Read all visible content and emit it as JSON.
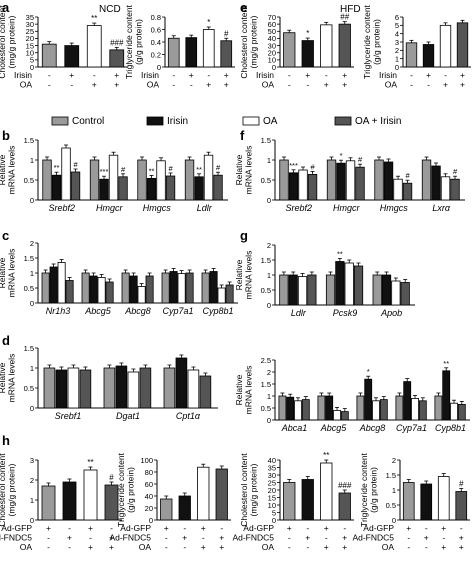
{
  "colors": {
    "gray": "#9a9a9a",
    "black": "#111111",
    "white": "#ffffff",
    "dark": "#555555"
  },
  "legend": [
    {
      "label": "Control",
      "color": "gray"
    },
    {
      "label": "Irisin",
      "color": "black"
    },
    {
      "label": "OA",
      "color": "white"
    },
    {
      "label": "OA + Irisin",
      "color": "dark"
    }
  ],
  "panel_letters": [
    "a",
    "b",
    "c",
    "d",
    "e",
    "f",
    "g",
    "h"
  ],
  "headings": {
    "ncd": "NCD",
    "hfd": "HFD"
  },
  "chart_data": [
    {
      "id": "a1",
      "type": "bar",
      "ylabel": "Cholesterol content\n(mg/g protein)",
      "ylim": [
        0,
        35
      ],
      "yticks": [
        0,
        5,
        10,
        15,
        20,
        25,
        30,
        35
      ],
      "values": [
        16,
        15,
        29,
        12
      ],
      "colors": [
        "gray",
        "black",
        "white",
        "dark"
      ],
      "sig": [
        "",
        "",
        "**",
        "###"
      ],
      "conditions": [
        {
          "name": "Irisin",
          "marks": [
            "-",
            "+",
            "-",
            "+"
          ]
        },
        {
          "name": "OA",
          "marks": [
            "-",
            "-",
            "+",
            "+"
          ]
        }
      ]
    },
    {
      "id": "a2",
      "type": "bar",
      "ylabel": "Triglyceride content\n(g/g protein)",
      "ylim": [
        0,
        0.8
      ],
      "yticks": [
        0.0,
        0.2,
        0.4,
        0.6,
        0.8
      ],
      "values": [
        0.46,
        0.47,
        0.6,
        0.42
      ],
      "colors": [
        "gray",
        "black",
        "white",
        "dark"
      ],
      "sig": [
        "",
        "",
        "*",
        "#"
      ],
      "conditions": [
        {
          "name": "Irisin",
          "marks": [
            "-",
            "+",
            "-",
            "+"
          ]
        },
        {
          "name": "OA",
          "marks": [
            "-",
            "-",
            "+",
            "+"
          ]
        }
      ]
    },
    {
      "id": "e1",
      "type": "bar",
      "ylabel": "Cholesterol content\n(mg/g protein)",
      "ylim": [
        0,
        70
      ],
      "yticks": [
        0,
        10,
        20,
        30,
        40,
        50,
        60,
        70
      ],
      "values": [
        48,
        37,
        59,
        60
      ],
      "colors": [
        "gray",
        "black",
        "white",
        "dark"
      ],
      "sig": [
        "",
        "*",
        "",
        "##"
      ],
      "conditions": [
        {
          "name": "Irisin",
          "marks": [
            "-",
            "+",
            "-",
            "+"
          ]
        },
        {
          "name": "OA",
          "marks": [
            "-",
            "-",
            "+",
            "+"
          ]
        }
      ]
    },
    {
      "id": "e2",
      "type": "bar",
      "ylabel": "Triglyceride content\n(g/g protein)",
      "ylim": [
        0,
        6
      ],
      "yticks": [
        0,
        1,
        2,
        3,
        4,
        5,
        6
      ],
      "values": [
        2.9,
        2.7,
        5.0,
        5.3
      ],
      "colors": [
        "gray",
        "black",
        "white",
        "dark"
      ],
      "sig": [
        "",
        "",
        "",
        ""
      ],
      "conditions": [
        {
          "name": "Irisin",
          "marks": [
            "-",
            "+",
            "-",
            "+"
          ]
        },
        {
          "name": "OA",
          "marks": [
            "-",
            "-",
            "+",
            "+"
          ]
        }
      ]
    },
    {
      "id": "b",
      "type": "bar",
      "ylabel": "Relative\nmRNA levels",
      "ylim": [
        0,
        1.5
      ],
      "yticks": [
        0.0,
        0.5,
        1.0,
        1.5
      ],
      "categories": [
        "Srebf2",
        "Hmgcr",
        "Hmgcs",
        "Ldlr"
      ],
      "series": [
        {
          "color": "gray",
          "values": [
            1.0,
            1.0,
            1.0,
            1.0
          ]
        },
        {
          "color": "black",
          "values": [
            0.62,
            0.52,
            0.54,
            0.58
          ]
        },
        {
          "color": "white",
          "values": [
            1.3,
            1.12,
            0.98,
            1.12
          ]
        },
        {
          "color": "dark",
          "values": [
            0.7,
            0.58,
            0.6,
            0.62
          ]
        }
      ],
      "sig": [
        [
          "",
          "**",
          "",
          "#"
        ],
        [
          "",
          "***",
          "",
          "#"
        ],
        [
          "",
          "**",
          "",
          "#"
        ],
        [
          "",
          "**",
          "",
          "#"
        ]
      ]
    },
    {
      "id": "f",
      "type": "bar",
      "ylabel": "Relative\nmRNA levels",
      "ylim": [
        0,
        1.5
      ],
      "yticks": [
        0.0,
        0.5,
        1.0,
        1.5
      ],
      "categories": [
        "Srebf2",
        "Hmgcr",
        "Hmgcs",
        "Lxrα"
      ],
      "series": [
        {
          "color": "gray",
          "values": [
            1.0,
            1.0,
            1.0,
            1.0
          ]
        },
        {
          "color": "black",
          "values": [
            0.68,
            0.92,
            0.95,
            0.85
          ]
        },
        {
          "color": "white",
          "values": [
            0.75,
            0.98,
            0.52,
            0.58
          ]
        },
        {
          "color": "dark",
          "values": [
            0.64,
            0.82,
            0.42,
            0.52
          ]
        }
      ],
      "sig": [
        [
          "",
          "***",
          "",
          "#"
        ],
        [
          "",
          "*",
          "",
          "#"
        ],
        [
          "",
          "",
          "",
          "#"
        ],
        [
          "",
          "",
          "",
          "#"
        ]
      ]
    },
    {
      "id": "c",
      "type": "bar",
      "ylabel": "Relative\nmRNA levels",
      "ylim": [
        0,
        2.0
      ],
      "yticks": [
        0.0,
        0.5,
        1.0,
        1.5,
        2.0
      ],
      "categories": [
        "Nr1h3",
        "Abcg5",
        "Abcg8",
        "Cyp7a1",
        "Cyp8b1"
      ],
      "series": [
        {
          "color": "gray",
          "values": [
            1.0,
            1.0,
            1.0,
            1.0,
            1.0
          ]
        },
        {
          "color": "black",
          "values": [
            1.2,
            0.9,
            0.9,
            1.05,
            1.05
          ]
        },
        {
          "color": "white",
          "values": [
            1.35,
            0.85,
            0.55,
            0.98,
            0.5
          ]
        },
        {
          "color": "dark",
          "values": [
            0.75,
            0.7,
            0.9,
            1.0,
            0.6
          ]
        }
      ],
      "sig": []
    },
    {
      "id": "g",
      "type": "bar",
      "ylabel": "Relative\nmRNA levels",
      "ylim": [
        0,
        2.0
      ],
      "yticks": [
        0.0,
        0.5,
        1.0,
        1.5,
        2.0
      ],
      "categories": [
        "Ldlr",
        "Pcsk9",
        "Apob"
      ],
      "series": [
        {
          "color": "gray",
          "values": [
            1.0,
            1.0,
            1.0
          ]
        },
        {
          "color": "black",
          "values": [
            1.0,
            1.45,
            1.0
          ]
        },
        {
          "color": "white",
          "values": [
            0.95,
            1.4,
            0.8
          ]
        },
        {
          "color": "dark",
          "values": [
            1.0,
            1.3,
            0.75
          ]
        }
      ],
      "sig": [
        [
          "",
          "",
          "",
          ""
        ],
        [
          "",
          "**",
          "",
          ""
        ],
        [
          "",
          "",
          "",
          ""
        ]
      ]
    },
    {
      "id": "d",
      "type": "bar",
      "ylabel": "Relative\nmRNA levels",
      "ylim": [
        0,
        1.5
      ],
      "yticks": [
        0.0,
        0.5,
        1.0,
        1.5
      ],
      "categories": [
        "Srebf1",
        "Dgat1",
        "Cpt1α"
      ],
      "series": [
        {
          "color": "gray",
          "values": [
            1.0,
            1.0,
            1.0
          ]
        },
        {
          "color": "black",
          "values": [
            0.95,
            1.05,
            1.25
          ]
        },
        {
          "color": "white",
          "values": [
            1.0,
            0.9,
            0.95
          ]
        },
        {
          "color": "dark",
          "values": [
            0.95,
            1.0,
            0.8
          ]
        }
      ],
      "sig": []
    },
    {
      "id": "g2",
      "type": "bar",
      "ylabel": "Relative\nmRNA levels",
      "ylim": [
        0,
        2.5
      ],
      "yticks": [
        0.0,
        0.5,
        1.0,
        1.5,
        2.0,
        2.5
      ],
      "categories": [
        "Abca1",
        "Abcg5",
        "Abcg8",
        "Cyp7a1",
        "Cyp8b1"
      ],
      "series": [
        {
          "color": "gray",
          "values": [
            1.0,
            1.0,
            1.0,
            1.0,
            1.0
          ]
        },
        {
          "color": "black",
          "values": [
            0.95,
            1.0,
            1.7,
            1.6,
            2.05
          ]
        },
        {
          "color": "white",
          "values": [
            0.8,
            0.4,
            0.8,
            0.9,
            0.7
          ]
        },
        {
          "color": "dark",
          "values": [
            0.85,
            0.35,
            0.85,
            0.8,
            0.65
          ]
        }
      ],
      "sig": [
        [
          "",
          "",
          "",
          ""
        ],
        [
          "",
          "",
          "",
          ""
        ],
        [
          "",
          "*",
          "",
          ""
        ],
        [
          "",
          "",
          "",
          ""
        ],
        [
          "",
          "**",
          "",
          ""
        ]
      ]
    },
    {
      "id": "h1",
      "type": "bar",
      "ylabel": "Cholesterol content\n(mg/g protein)",
      "ylim": [
        0,
        3
      ],
      "yticks": [
        0,
        1,
        2,
        3
      ],
      "values": [
        1.7,
        1.9,
        2.5,
        1.75
      ],
      "colors": [
        "gray",
        "black",
        "white",
        "dark"
      ],
      "sig": [
        "",
        "",
        "**",
        "#"
      ],
      "conditions": [
        {
          "name": "Ad-GFP",
          "marks": [
            "+",
            "-",
            "+",
            "-"
          ]
        },
        {
          "name": "Ad-FNDC5",
          "marks": [
            "-",
            "+",
            "-",
            "+"
          ]
        },
        {
          "name": "OA",
          "marks": [
            "-",
            "-",
            "+",
            "+"
          ]
        }
      ]
    },
    {
      "id": "h2",
      "type": "bar",
      "ylabel": "Triglyceride content\n(g/g protein)",
      "ylim": [
        0,
        100
      ],
      "yticks": [
        0,
        20,
        40,
        60,
        80,
        100
      ],
      "values": [
        35,
        40,
        88,
        85
      ],
      "colors": [
        "gray",
        "black",
        "white",
        "dark"
      ],
      "sig": [
        "",
        "",
        "",
        ""
      ],
      "conditions": [
        {
          "name": "Ad-GFP",
          "marks": [
            "+",
            "-",
            "+",
            "-"
          ]
        },
        {
          "name": "Ad-FNDC5",
          "marks": [
            "-",
            "+",
            "-",
            "+"
          ]
        },
        {
          "name": "OA",
          "marks": [
            "-",
            "-",
            "+",
            "+"
          ]
        }
      ]
    },
    {
      "id": "h3",
      "type": "bar",
      "ylabel": "Cholesterol content\n(mg/g protein)",
      "ylim": [
        0,
        40
      ],
      "yticks": [
        0,
        5,
        10,
        15,
        20,
        25,
        30,
        35,
        40
      ],
      "values": [
        25,
        27,
        38,
        18
      ],
      "colors": [
        "gray",
        "black",
        "white",
        "dark"
      ],
      "sig": [
        "",
        "",
        "**",
        "###"
      ],
      "conditions": [
        {
          "name": "Ad-GFP",
          "marks": [
            "+",
            "-",
            "+",
            "-"
          ]
        },
        {
          "name": "Ad-FNDC5",
          "marks": [
            "-",
            "+",
            "-",
            "+"
          ]
        },
        {
          "name": "OA",
          "marks": [
            "-",
            "-",
            "+",
            "+"
          ]
        }
      ]
    },
    {
      "id": "h4",
      "type": "bar",
      "ylabel": "Triglyceride content\n(g/g protein)",
      "ylim": [
        0,
        2.0
      ],
      "yticks": [
        0.0,
        0.5,
        1.0,
        1.5,
        2.0
      ],
      "values": [
        1.25,
        1.2,
        1.45,
        0.95
      ],
      "colors": [
        "gray",
        "black",
        "white",
        "dark"
      ],
      "sig": [
        "",
        "",
        "",
        "#"
      ],
      "conditions": [
        {
          "name": "Ad-GFP",
          "marks": [
            "+",
            "-",
            "+",
            "-"
          ]
        },
        {
          "name": "Ad-FNDC5",
          "marks": [
            "-",
            "+",
            "-",
            "+"
          ]
        },
        {
          "name": "OA",
          "marks": [
            "-",
            "-",
            "+",
            "+"
          ]
        }
      ]
    }
  ]
}
